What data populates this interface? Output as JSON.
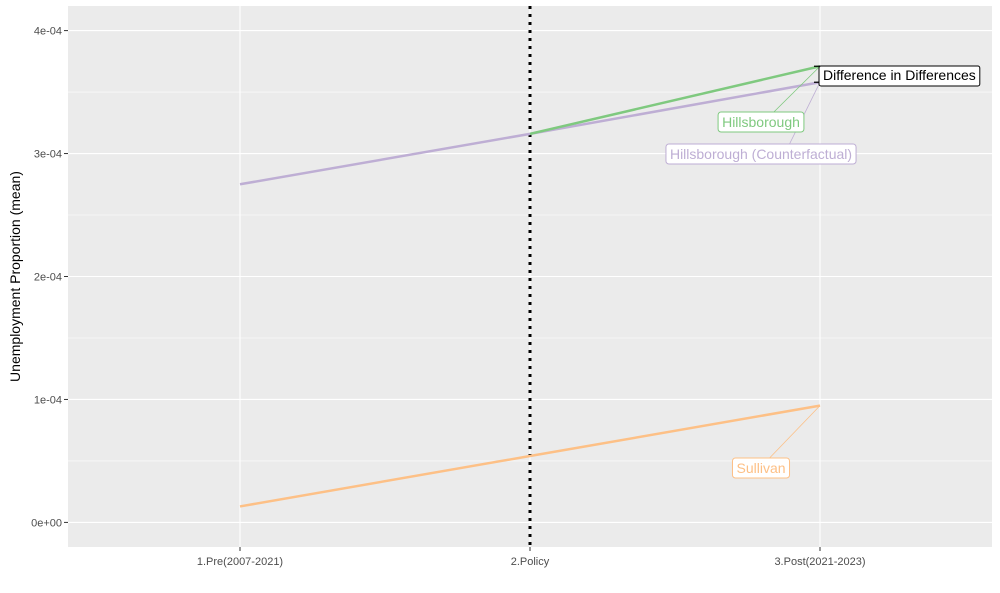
{
  "chart_data": {
    "type": "line",
    "title": "",
    "xlabel": "",
    "ylabel": "Unemployment Proportion (mean)",
    "categories": [
      "1.Pre(2007-2021)",
      "2.Policy",
      "3.Post(2021-2023)"
    ],
    "ylim": [
      -2e-05,
      0.00042
    ],
    "yticks": [
      0,
      0.0001,
      0.0002,
      0.0003,
      0.0004
    ],
    "ytick_labels": [
      "0e+00",
      "1e-04",
      "2e-04",
      "3e-04",
      "4e-04"
    ],
    "grid": true,
    "vline": {
      "category": "2.Policy",
      "style": "dotted",
      "color": "#000000"
    },
    "series": [
      {
        "name": "Hillsborough",
        "color": "#7fc97f",
        "values": [
          null,
          0.000316,
          0.000371
        ]
      },
      {
        "name": "Hillsborough (Counterfactual)",
        "color": "#beaed4",
        "values": [
          0.000275,
          0.000316,
          0.000358
        ]
      },
      {
        "name": "Sullivan",
        "color": "#fdc086",
        "values": [
          1.3e-05,
          5.4e-05,
          9.5e-05
        ]
      }
    ],
    "annotations": [
      {
        "text": "Difference in Differences",
        "color": "#000000"
      }
    ]
  }
}
